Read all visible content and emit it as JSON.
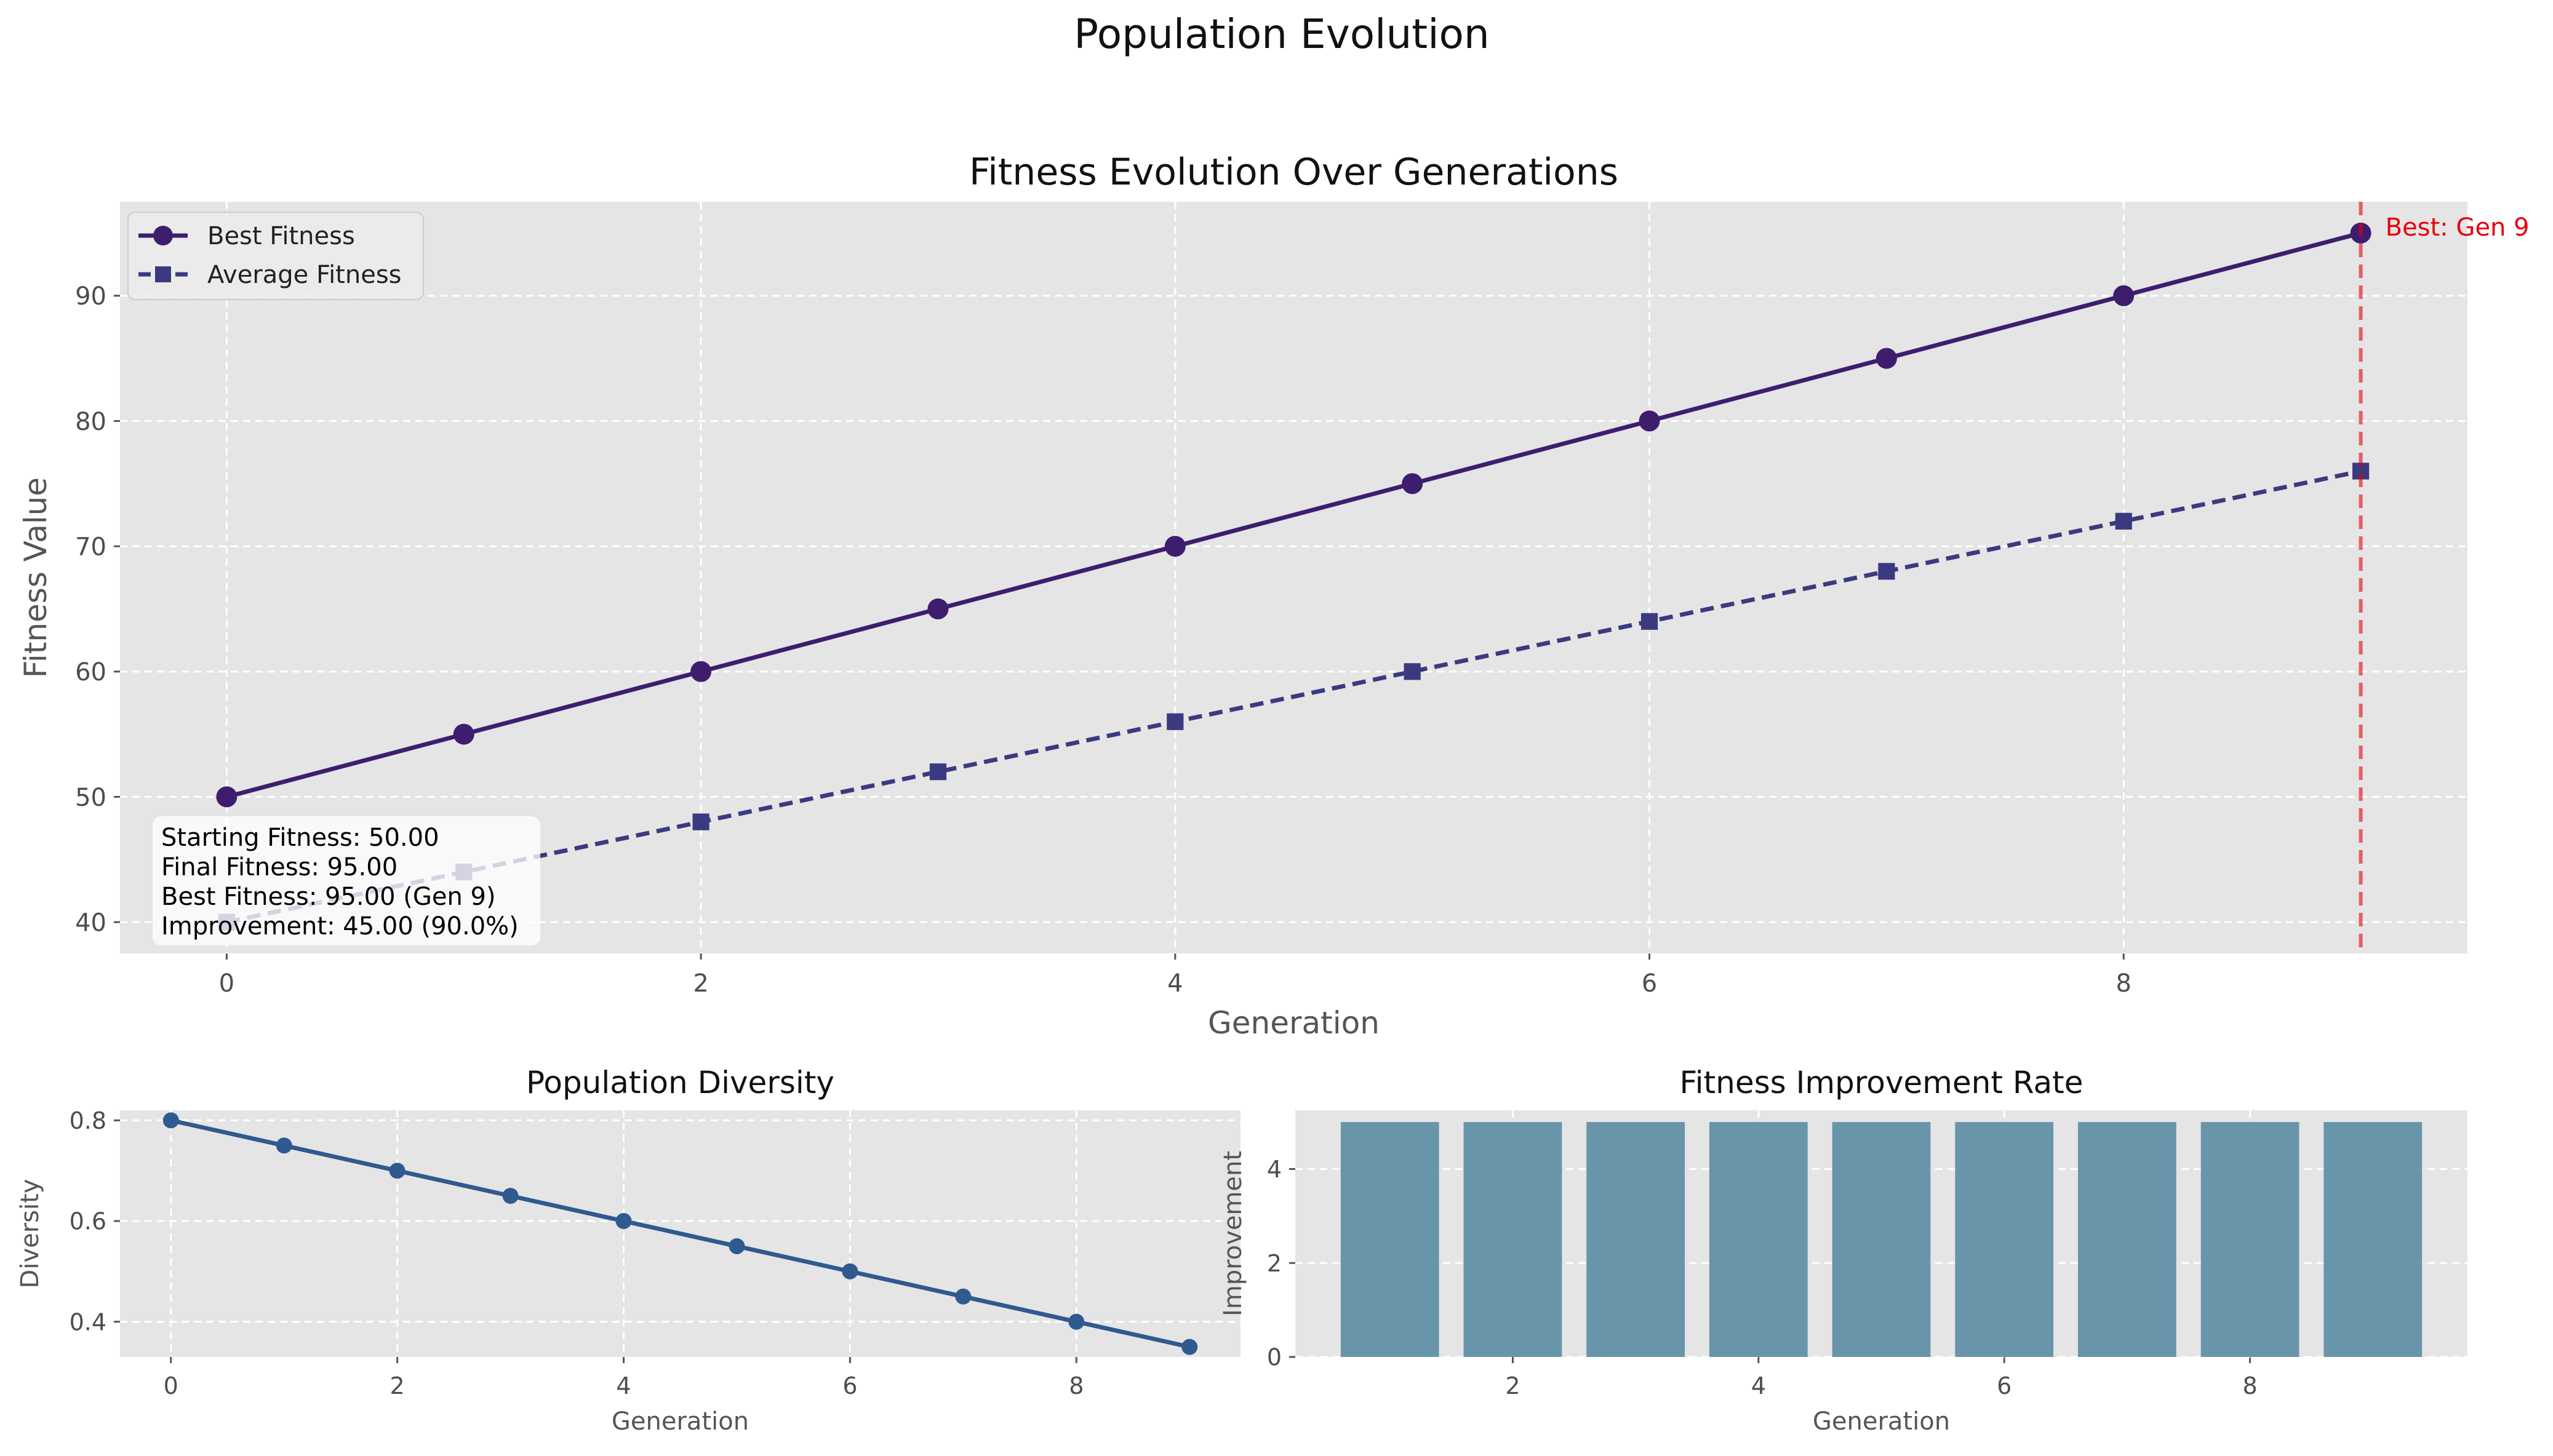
{
  "figure": {
    "suptitle": "Population Evolution"
  },
  "chart_data": [
    {
      "type": "line",
      "title": "Fitness Evolution Over Generations",
      "xlabel": "Generation",
      "ylabel": "Fitness Value",
      "xlim": [
        -0.45,
        9.45
      ],
      "ylim": [
        37.5,
        97.5
      ],
      "xticks": [
        0,
        2,
        4,
        6,
        8
      ],
      "yticks": [
        40,
        50,
        60,
        70,
        80,
        90
      ],
      "grid": true,
      "legend_position": "upper-left",
      "x": [
        0,
        1,
        2,
        3,
        4,
        5,
        6,
        7,
        8,
        9
      ],
      "series": [
        {
          "name": "Best Fitness",
          "values": [
            50,
            55,
            60,
            65,
            70,
            75,
            80,
            85,
            90,
            95
          ],
          "color": "#3f1d6e",
          "marker": "circle",
          "linestyle": "solid"
        },
        {
          "name": "Average Fitness",
          "values": [
            40,
            44,
            48,
            52,
            56,
            60,
            64,
            68,
            72,
            76
          ],
          "color": "#3b3a80",
          "marker": "square",
          "linestyle": "dashed"
        }
      ],
      "best_marker": {
        "x": 9,
        "label": "Best: Gen 9",
        "color": "#e8000b"
      },
      "stats_box": [
        "Starting Fitness: 50.00",
        "Final Fitness: 95.00",
        "Best Fitness: 95.00 (Gen 9)",
        "Improvement: 45.00 (90.0%)"
      ]
    },
    {
      "type": "line",
      "title": "Population Diversity",
      "xlabel": "Generation",
      "ylabel": "Diversity",
      "xlim": [
        -0.45,
        9.45
      ],
      "ylim": [
        0.33,
        0.82
      ],
      "xticks": [
        0,
        2,
        4,
        6,
        8
      ],
      "yticks": [
        0.4,
        0.6,
        0.8
      ],
      "grid": true,
      "x": [
        0,
        1,
        2,
        3,
        4,
        5,
        6,
        7,
        8,
        9
      ],
      "series": [
        {
          "values": [
            0.8,
            0.75,
            0.7,
            0.65,
            0.6,
            0.55,
            0.5,
            0.45,
            0.4,
            0.35
          ],
          "color": "#2f5a8f",
          "marker": "circle",
          "linestyle": "solid"
        }
      ]
    },
    {
      "type": "bar",
      "title": "Fitness Improvement Rate",
      "xlabel": "Generation",
      "ylabel": "Improvement",
      "xlim": [
        0.23,
        9.77
      ],
      "ylim": [
        0,
        5.25
      ],
      "xticks": [
        2,
        4,
        6,
        8
      ],
      "yticks": [
        0,
        2,
        4
      ],
      "grid": true,
      "x": [
        1,
        2,
        3,
        4,
        5,
        6,
        7,
        8,
        9
      ],
      "values": [
        5,
        5,
        5,
        5,
        5,
        5,
        5,
        5,
        5
      ],
      "color": "#5a8ca3"
    }
  ]
}
